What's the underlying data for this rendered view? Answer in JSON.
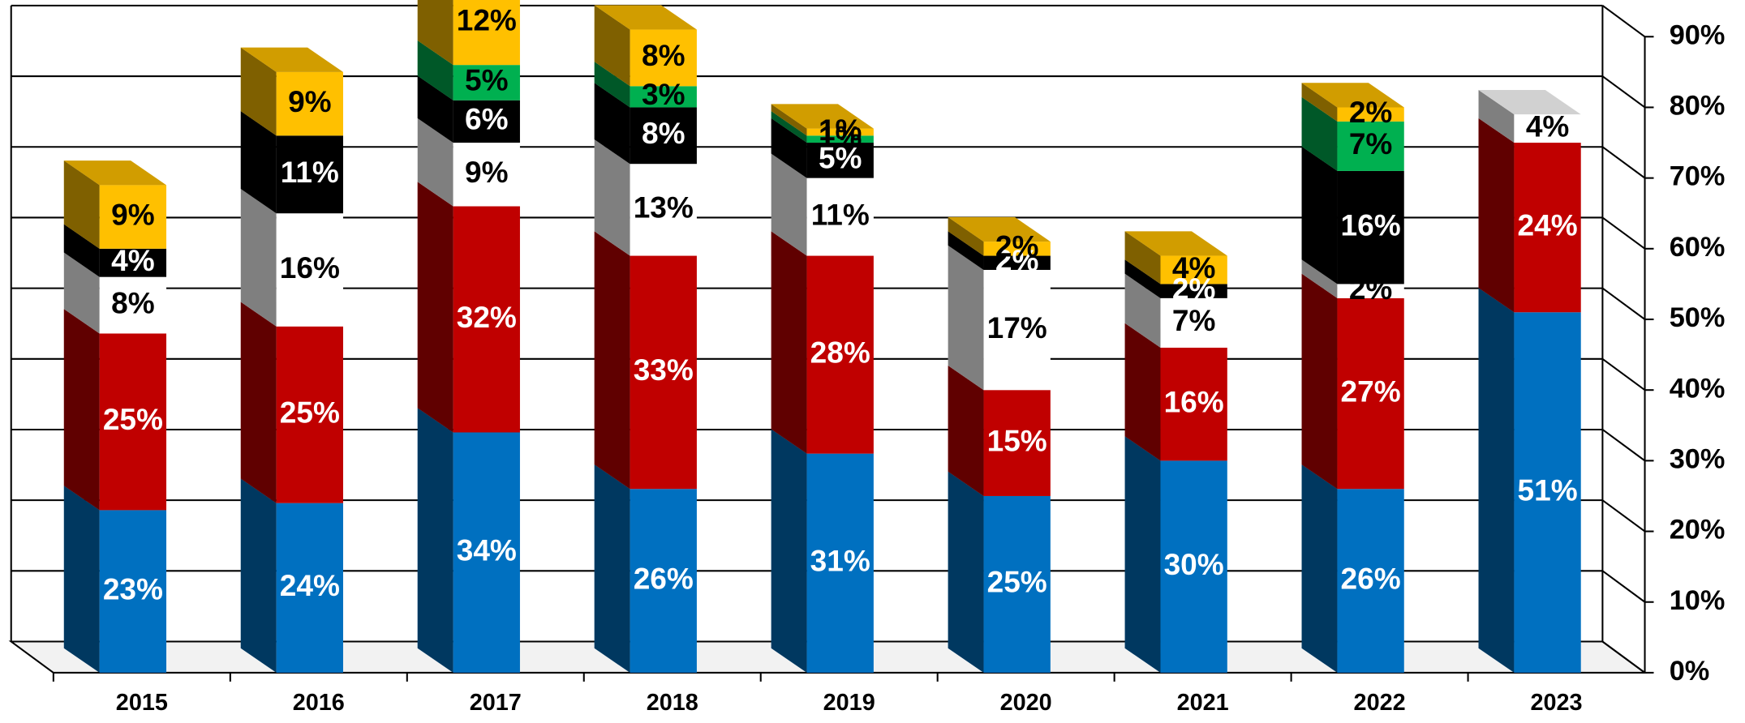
{
  "chart_data": {
    "type": "bar3d_stacked",
    "categories": [
      "2015",
      "2016",
      "2017",
      "2018",
      "2019",
      "2020",
      "2021",
      "2022",
      "2023"
    ],
    "series": [
      {
        "color": "#0070c0",
        "label_color": "#ffffff",
        "values": [
          23,
          24,
          34,
          26,
          31,
          25,
          30,
          26,
          51
        ],
        "value_labels": [
          "23%",
          "24%",
          "34%",
          "26%",
          "31%",
          "25%",
          "30%",
          "26%",
          "51%"
        ]
      },
      {
        "color": "#c00000",
        "label_color": "#ffffff",
        "values": [
          25,
          25,
          32,
          33,
          28,
          15,
          16,
          27,
          24
        ],
        "value_labels": [
          "25%",
          "25%",
          "32%",
          "33%",
          "28%",
          "15%",
          "16%",
          "27%",
          "24%"
        ]
      },
      {
        "color": "#ffffff",
        "label_color": "#000000",
        "values": [
          8,
          16,
          9,
          13,
          11,
          17,
          7,
          2,
          4
        ],
        "value_labels": [
          "8%",
          "16%",
          "9%",
          "13%",
          "11%",
          "17%",
          "7%",
          "2%",
          "4%"
        ]
      },
      {
        "color": "#000000",
        "label_color": "#ffffff",
        "values": [
          4,
          11,
          6,
          8,
          5,
          2,
          2,
          16,
          null
        ],
        "value_labels": [
          "4%",
          "11%",
          "6%",
          "8%",
          "5%",
          "2%",
          "2%",
          "16%",
          null
        ]
      },
      {
        "color": "#00b050",
        "label_color": "#000000",
        "values": [
          null,
          null,
          5,
          3,
          1,
          null,
          null,
          7,
          null
        ],
        "value_labels": [
          null,
          null,
          "5%",
          "3%",
          "1%",
          null,
          null,
          "7%",
          null
        ]
      },
      {
        "color": "#ffc000",
        "label_color": "#000000",
        "values": [
          9,
          9,
          12,
          8,
          1,
          2,
          4,
          2,
          null
        ],
        "value_labels": [
          "9%",
          "9%",
          "12%",
          "8%",
          "1%",
          "2%",
          "4%",
          "2%",
          null
        ]
      }
    ],
    "ylim": [
      0,
      90
    ],
    "yticks": [
      {
        "value": 0,
        "label": "0%"
      },
      {
        "value": 10,
        "label": "10%"
      },
      {
        "value": 20,
        "label": "20%"
      },
      {
        "value": 30,
        "label": "30%"
      },
      {
        "value": 40,
        "label": "40%"
      },
      {
        "value": 50,
        "label": "50%"
      },
      {
        "value": 60,
        "label": "60%"
      },
      {
        "value": 70,
        "label": "70%"
      },
      {
        "value": 80,
        "label": "80%"
      },
      {
        "value": 90,
        "label": "90%"
      }
    ],
    "grid": true
  }
}
